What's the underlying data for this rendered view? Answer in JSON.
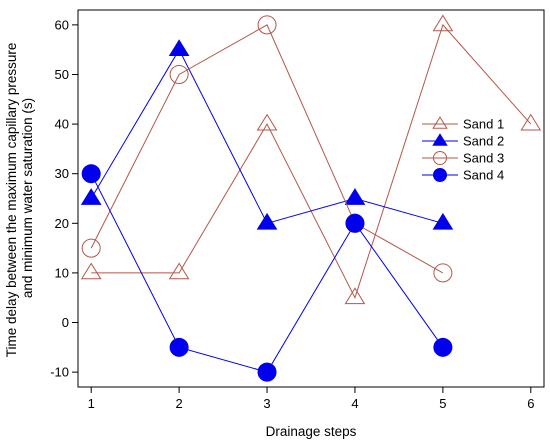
{
  "chart_data": {
    "type": "line",
    "xlabel": "Drainage steps",
    "ylabel": [
      "Time delay between the maximum capillary pressure",
      "and minimum water saturation (s)"
    ],
    "xlim": [
      0.85,
      6.15
    ],
    "ylim": [
      -13,
      63
    ],
    "xticks": [
      1,
      2,
      3,
      4,
      5,
      6
    ],
    "yticks": [
      -10,
      0,
      10,
      20,
      30,
      40,
      50,
      60
    ],
    "legend_position": "right",
    "series": [
      {
        "name": "Sand 1",
        "color": "#b5574b",
        "marker": "open-triangle",
        "x": [
          1,
          2,
          3,
          4,
          5,
          6
        ],
        "y": [
          10,
          10,
          40,
          5,
          60,
          40
        ]
      },
      {
        "name": "Sand 2",
        "color": "#0000ee",
        "marker": "filled-triangle",
        "x": [
          1,
          2,
          3,
          4,
          5
        ],
        "y": [
          25,
          55,
          20,
          25,
          20
        ]
      },
      {
        "name": "Sand 3",
        "color": "#b5574b",
        "marker": "open-circle",
        "x": [
          1,
          2,
          3,
          4,
          5
        ],
        "y": [
          15,
          50,
          60,
          20,
          10
        ]
      },
      {
        "name": "Sand 4",
        "color": "#0000ee",
        "marker": "filled-circle",
        "x": [
          1,
          2,
          3,
          4,
          5
        ],
        "y": [
          30,
          -5,
          -10,
          20,
          -5
        ]
      }
    ]
  }
}
